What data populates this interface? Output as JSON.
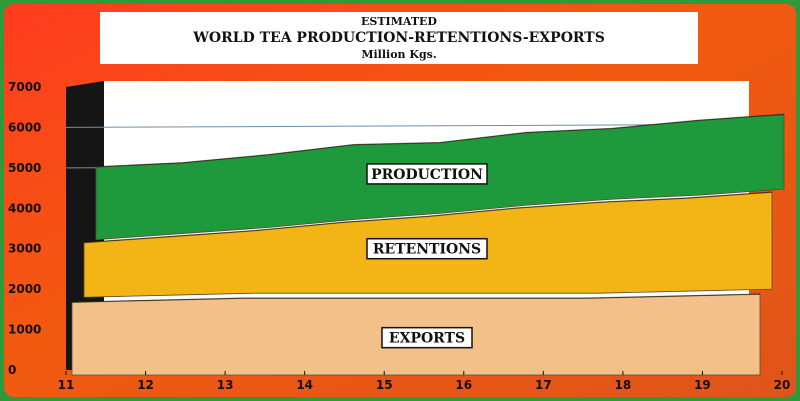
{
  "chart_data": {
    "type": "area",
    "title_lines": [
      "ESTIMATED",
      "WORLD TEA PRODUCTION-RETENTIONS-EXPORTS",
      "Million Kgs."
    ],
    "xlabel": "",
    "ylabel": "",
    "x": [
      11,
      12,
      13,
      14,
      15,
      16,
      17,
      18,
      19
    ],
    "x_tick_labels": [
      "11",
      "12",
      "13",
      "14",
      "15",
      "16",
      "17",
      "18",
      "19",
      "20"
    ],
    "y_tick_labels": [
      "0",
      "1000",
      "2000",
      "3000",
      "4000",
      "5000",
      "6000",
      "7000"
    ],
    "ylim": [
      0,
      7000
    ],
    "stacked": true,
    "series": [
      {
        "name": "EXPORTS",
        "color": "#f3c08a",
        "values": [
          1800,
          1850,
          1900,
          1900,
          1900,
          1900,
          1900,
          1950,
          2000
        ]
      },
      {
        "name": "RETENTIONS",
        "color": "#f2b515",
        "values": [
          1350,
          1450,
          1550,
          1750,
          1900,
          2100,
          2250,
          2300,
          2400
        ]
      },
      {
        "name": "PRODUCTION",
        "color": "#1e9a3c",
        "values": [
          1800,
          1750,
          1800,
          1850,
          1750,
          1800,
          1750,
          1850,
          1850
        ]
      }
    ],
    "grid": true,
    "legend": "labels inside bands"
  }
}
